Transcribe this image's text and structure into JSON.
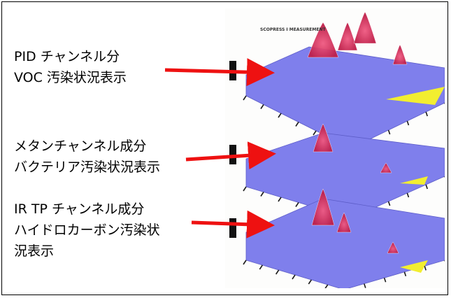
{
  "labels": [
    {
      "line1": "PID チャンネル分",
      "line2": "VOC 汚染状況表示"
    },
    {
      "line1": "メタンチャンネル成分",
      "line2": "バクテリア汚染状況表示"
    },
    {
      "line1": "IR TP チャンネル成分",
      "line2": "ハイドロカーボン汚染状",
      "line3": "況表示"
    }
  ],
  "plot_title": "SCOPRESS I MEASUREMENT",
  "colors": {
    "arrow": "#ee1111",
    "surface": "#7f7fec",
    "peaks": "#d8305a",
    "highlight": "#f2ee30",
    "axis": "#1a1a1a"
  }
}
